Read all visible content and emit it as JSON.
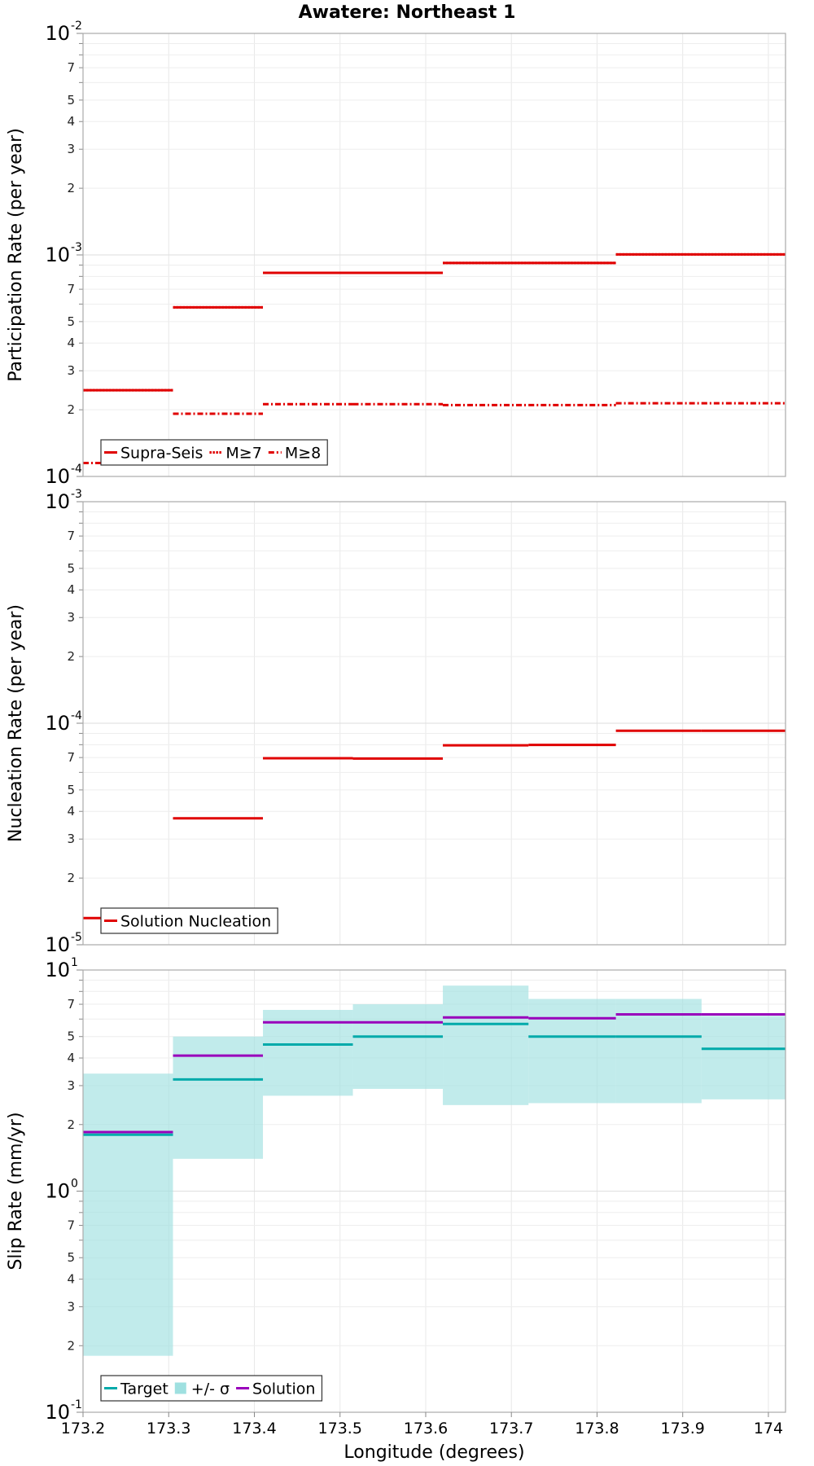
{
  "title": "Awatere: Northeast 1",
  "chart_data": [
    {
      "type": "line",
      "name": "participation",
      "ylabel": "Participation Rate (per year)",
      "xlabel": "",
      "xlim": [
        173.2,
        174.02
      ],
      "ylim": [
        0.0001,
        0.01
      ],
      "yscale": "log",
      "y_decades": [
        {
          "base": "10",
          "exp": "-4"
        },
        {
          "base": "10",
          "exp": "-3"
        },
        {
          "base": "10",
          "exp": "-2"
        }
      ],
      "x": [
        [
          173.2,
          173.305
        ],
        [
          173.305,
          173.41
        ],
        [
          173.41,
          173.515
        ],
        [
          173.515,
          173.62
        ],
        [
          173.62,
          173.72
        ],
        [
          173.72,
          173.822
        ],
        [
          173.822,
          173.922
        ],
        [
          173.922,
          174.02
        ]
      ],
      "series": [
        {
          "name": "Supra-Seis",
          "color": "#e00000",
          "style": "solid",
          "values": [
            0.000245,
            0.00058,
            0.00083,
            0.00083,
            0.00092,
            0.00092,
            0.001005,
            0.001005
          ]
        },
        {
          "name": "M≥7",
          "color": "#e00000",
          "style": "dotted",
          "values": [
            0.000245,
            0.00058,
            0.00083,
            0.00083,
            0.00092,
            0.00092,
            0.001005,
            0.001005
          ]
        },
        {
          "name": "M≥8",
          "color": "#e00000",
          "style": "dashdot",
          "values": [
            0.000115,
            0.000192,
            0.000212,
            0.000212,
            0.00021,
            0.00021,
            0.000214,
            0.000214
          ]
        }
      ],
      "legend": [
        "Supra-Seis",
        "M≥7",
        "M≥8"
      ],
      "legend_position": "bottom-left"
    },
    {
      "type": "line",
      "name": "nucleation",
      "ylabel": "Nucleation Rate (per year)",
      "xlabel": "",
      "xlim": [
        173.2,
        174.02
      ],
      "ylim": [
        1e-05,
        0.001
      ],
      "yscale": "log",
      "y_decades": [
        {
          "base": "10",
          "exp": "-5"
        },
        {
          "base": "10",
          "exp": "-4"
        },
        {
          "base": "10",
          "exp": "-3"
        }
      ],
      "x": [
        [
          173.2,
          173.305
        ],
        [
          173.305,
          173.41
        ],
        [
          173.41,
          173.515
        ],
        [
          173.515,
          173.62
        ],
        [
          173.62,
          173.72
        ],
        [
          173.72,
          173.822
        ],
        [
          173.822,
          173.922
        ],
        [
          173.922,
          174.02
        ]
      ],
      "series": [
        {
          "name": "Solution Nucleation",
          "color": "#e00000",
          "style": "solid",
          "values": [
            1.32e-05,
            3.72e-05,
            6.95e-05,
            6.93e-05,
            7.95e-05,
            7.98e-05,
            9.25e-05,
            9.25e-05
          ]
        }
      ],
      "legend": [
        "Solution Nucleation"
      ],
      "legend_position": "bottom-left"
    },
    {
      "type": "line",
      "name": "sliprate",
      "ylabel": "Slip Rate (mm/yr)",
      "xlabel": "Longitude (degrees)",
      "xlim": [
        173.2,
        174.02
      ],
      "ylim": [
        0.1,
        10
      ],
      "yscale": "log",
      "y_decades": [
        {
          "base": "10",
          "exp": "-1"
        },
        {
          "base": "10",
          "exp": "0"
        },
        {
          "base": "10",
          "exp": "1"
        }
      ],
      "x": [
        [
          173.2,
          173.305
        ],
        [
          173.305,
          173.41
        ],
        [
          173.41,
          173.515
        ],
        [
          173.515,
          173.62
        ],
        [
          173.62,
          173.72
        ],
        [
          173.72,
          173.822
        ],
        [
          173.822,
          173.922
        ],
        [
          173.922,
          174.02
        ]
      ],
      "xticks": [
        "173.2",
        "173.3",
        "173.4",
        "173.5",
        "173.6",
        "173.7",
        "173.8",
        "173.9",
        "174"
      ],
      "band": {
        "name": "+/- σ",
        "color": "#9fe0e0",
        "lower": [
          0.18,
          1.4,
          2.7,
          2.9,
          2.45,
          2.5,
          2.5,
          2.6
        ],
        "upper": [
          3.4,
          5.0,
          6.6,
          7.0,
          8.5,
          7.4,
          7.4,
          6.2
        ]
      },
      "series": [
        {
          "name": "Target",
          "color": "#00aaaa",
          "style": "solid",
          "values": [
            1.8,
            3.2,
            4.6,
            5.0,
            5.7,
            5.0,
            5.0,
            4.4
          ]
        },
        {
          "name": "Solution",
          "color": "#9900bb",
          "style": "solid",
          "values": [
            1.85,
            4.1,
            5.8,
            5.8,
            6.1,
            6.05,
            6.3,
            6.3
          ]
        }
      ],
      "legend": [
        "Target",
        "+/- σ",
        "Solution"
      ],
      "legend_position": "bottom-left"
    }
  ]
}
